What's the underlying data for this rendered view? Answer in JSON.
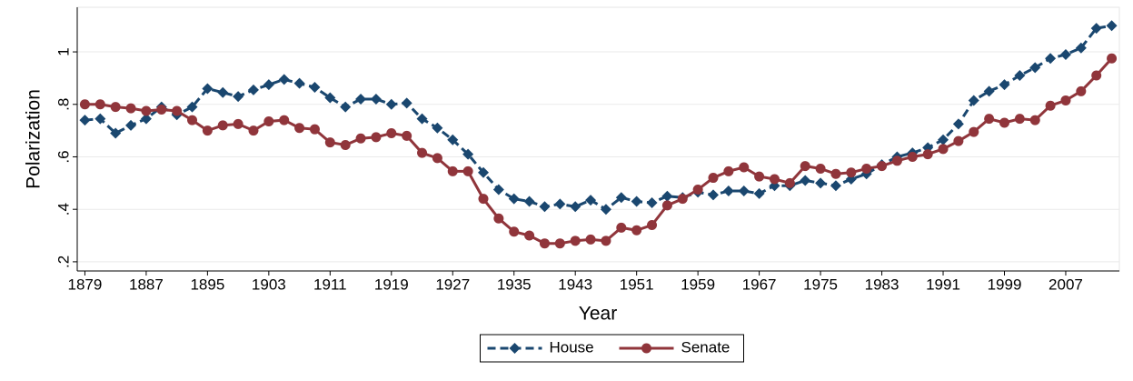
{
  "chart_data": {
    "type": "line",
    "xlabel": "Year",
    "ylabel": "Polarization",
    "x": [
      1879,
      1881,
      1883,
      1885,
      1887,
      1889,
      1891,
      1893,
      1895,
      1897,
      1899,
      1901,
      1903,
      1905,
      1907,
      1909,
      1911,
      1913,
      1915,
      1917,
      1919,
      1921,
      1923,
      1925,
      1927,
      1929,
      1931,
      1933,
      1935,
      1937,
      1939,
      1941,
      1943,
      1945,
      1947,
      1949,
      1951,
      1953,
      1955,
      1957,
      1959,
      1961,
      1963,
      1965,
      1967,
      1969,
      1971,
      1973,
      1975,
      1977,
      1979,
      1981,
      1983,
      1985,
      1987,
      1989,
      1991,
      1993,
      1995,
      1997,
      1999,
      2001,
      2003,
      2005,
      2007,
      2009,
      2011,
      2013
    ],
    "series": [
      {
        "name": "House",
        "color": "#1a476f",
        "marker": "diamond",
        "dash": true,
        "values": [
          0.74,
          0.745,
          0.69,
          0.72,
          0.745,
          0.79,
          0.76,
          0.79,
          0.86,
          0.845,
          0.83,
          0.855,
          0.875,
          0.895,
          0.88,
          0.865,
          0.825,
          0.79,
          0.82,
          0.82,
          0.8,
          0.805,
          0.745,
          0.71,
          0.665,
          0.61,
          0.54,
          0.475,
          0.44,
          0.43,
          0.41,
          0.42,
          0.41,
          0.435,
          0.4,
          0.445,
          0.43,
          0.425,
          0.45,
          0.445,
          0.465,
          0.455,
          0.47,
          0.47,
          0.46,
          0.49,
          0.49,
          0.51,
          0.5,
          0.49,
          0.515,
          0.535,
          0.57,
          0.6,
          0.615,
          0.635,
          0.665,
          0.725,
          0.815,
          0.85,
          0.875,
          0.91,
          0.94,
          0.975,
          0.99,
          1.015,
          1.09,
          1.1
        ]
      },
      {
        "name": "Senate",
        "color": "#90353b",
        "marker": "circle",
        "dash": false,
        "values": [
          0.8,
          0.8,
          0.79,
          0.785,
          0.775,
          0.78,
          0.775,
          0.74,
          0.7,
          0.72,
          0.725,
          0.7,
          0.735,
          0.74,
          0.71,
          0.705,
          0.655,
          0.645,
          0.67,
          0.675,
          0.69,
          0.68,
          0.615,
          0.595,
          0.545,
          0.545,
          0.44,
          0.365,
          0.315,
          0.3,
          0.27,
          0.27,
          0.28,
          0.285,
          0.28,
          0.33,
          0.32,
          0.34,
          0.415,
          0.44,
          0.475,
          0.52,
          0.545,
          0.56,
          0.525,
          0.515,
          0.5,
          0.565,
          0.555,
          0.535,
          0.54,
          0.555,
          0.565,
          0.585,
          0.6,
          0.61,
          0.63,
          0.66,
          0.695,
          0.745,
          0.73,
          0.745,
          0.74,
          0.795,
          0.815,
          0.85,
          0.91,
          0.975
        ]
      }
    ],
    "xlim": [
      1878,
      2014
    ],
    "xticks": [
      1879,
      1887,
      1895,
      1903,
      1911,
      1919,
      1927,
      1935,
      1943,
      1951,
      1959,
      1967,
      1975,
      1983,
      1991,
      1999,
      2007
    ],
    "ylim": [
      0.165,
      1.17
    ],
    "yticks": [
      {
        "value": 0.2,
        "label": ".2"
      },
      {
        "value": 0.4,
        "label": ".4"
      },
      {
        "value": 0.6,
        "label": ".6"
      },
      {
        "value": 0.8,
        "label": ".8"
      },
      1
    ],
    "grid": true,
    "legend": "bottom"
  }
}
